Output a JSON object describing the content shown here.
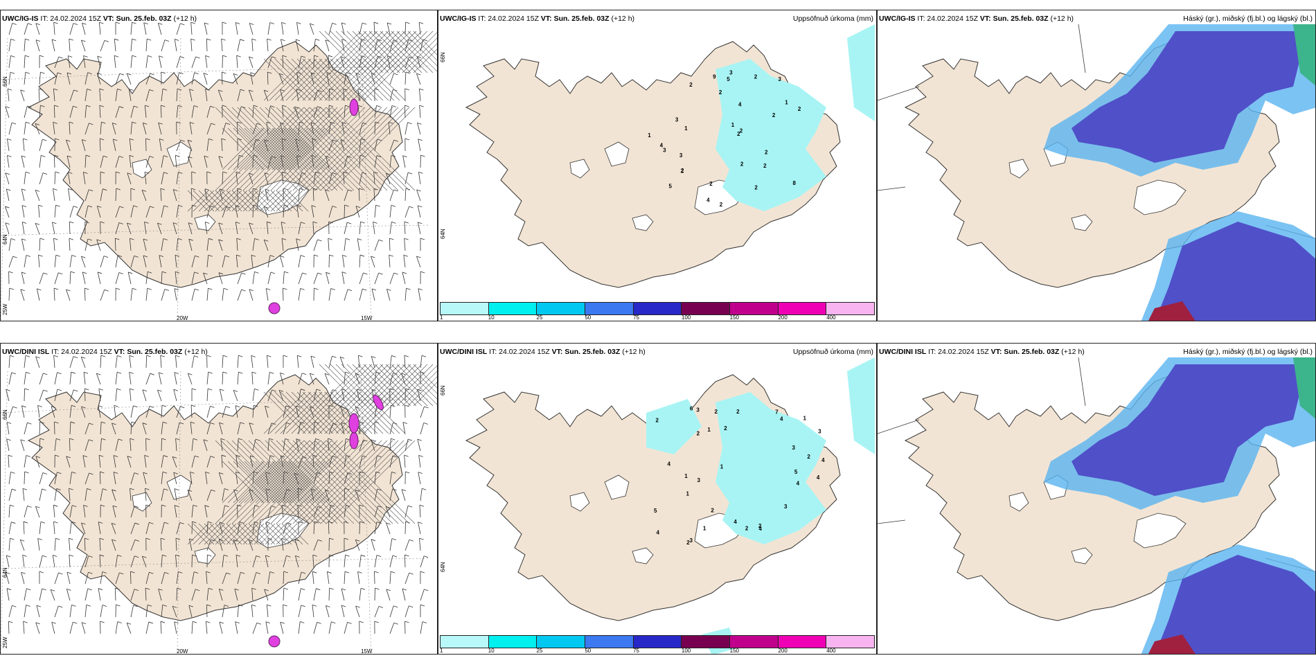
{
  "panels": [
    {
      "model": "UWC/IG-IS",
      "it": "IT: 24.02.2024 15Z",
      "vt_label": "VT:",
      "vt": "Sun. 25.feb. 03Z",
      "lead": "(+12 h)",
      "right_title": ""
    },
    {
      "model": "UWC/IG-IS",
      "it": "IT: 24.02.2024 15Z",
      "vt_label": "VT:",
      "vt": "Sun. 25.feb. 03Z",
      "lead": "(+12 h)",
      "right_title": "Uppsöfnuð úrkoma (mm)"
    },
    {
      "model": "UWC/IG-IS",
      "it": "IT: 24.02.2024 15Z",
      "vt_label": "VT:",
      "vt": "Sun. 25.feb. 03Z",
      "lead": "(+12 h)",
      "right_title": "Háský (gr.), miðský (fj.bl.) og lágský (bl.)"
    },
    {
      "model": "UWC/DINI ISL",
      "it": "IT: 24.02.2024 15Z",
      "vt_label": "VT:",
      "vt": "Sun. 25.feb. 03Z",
      "lead": "(+12 h)",
      "right_title": ""
    },
    {
      "model": "UWC/DINI ISL",
      "it": "IT: 24.02.2024 15Z",
      "vt_label": "VT:",
      "vt": "Sun. 25.feb. 03Z",
      "lead": "(+12 h)",
      "right_title": "Uppsöfnuð úrkoma (mm)"
    },
    {
      "model": "UWC/DINI ISL",
      "it": "IT: 24.02.2024 15Z",
      "vt_label": "VT:",
      "vt": "Sun. 25.feb. 03Z",
      "lead": "(+12 h)",
      "right_title": "Háský (gr.), miðský (fj.bl.) og lágský (bl.)"
    }
  ],
  "grid_labels": {
    "lat_66": "66N",
    "lat_64": "64N",
    "lon_25": "25W",
    "lon_20": "20W",
    "lon_15": "15W"
  },
  "colorbar": {
    "ticks": [
      "1",
      "10",
      "25",
      "50",
      "75",
      "100",
      "150",
      "200",
      "400"
    ],
    "colors": [
      "#b8f8f8",
      "#00f0f0",
      "#00c8f0",
      "#3c78f0",
      "#2828c8",
      "#780050",
      "#c0008c",
      "#f000b4",
      "#f8b4f0"
    ]
  },
  "colors": {
    "land": "#f2e4d4",
    "precip": "#a8f4f4",
    "cloud_low": "#5050c8",
    "cloud_mid": "#5ab4f0",
    "cloud_high": "#3cb48c",
    "cloud_edge": "#a02040"
  },
  "precip_labels": {
    "top": [
      "5",
      "3",
      "2",
      "1",
      "2",
      "1",
      "3",
      "2",
      "2",
      "2",
      "4",
      "3",
      "2",
      "2",
      "2",
      "9",
      "8",
      "1",
      "2",
      "4",
      "2",
      "5",
      "2",
      "2",
      "1",
      "2",
      "3",
      "2",
      "4",
      "2",
      "3"
    ],
    "bottom": [
      "4",
      "7",
      "3",
      "4",
      "2",
      "4",
      "2",
      "3",
      "4",
      "2",
      "1",
      "3",
      "1",
      "2",
      "2",
      "1",
      "2",
      "5",
      "1",
      "4",
      "6",
      "2",
      "1",
      "2",
      "3",
      "4",
      "4",
      "3",
      "3",
      "4",
      "5",
      "2",
      "2",
      "1"
    ]
  }
}
